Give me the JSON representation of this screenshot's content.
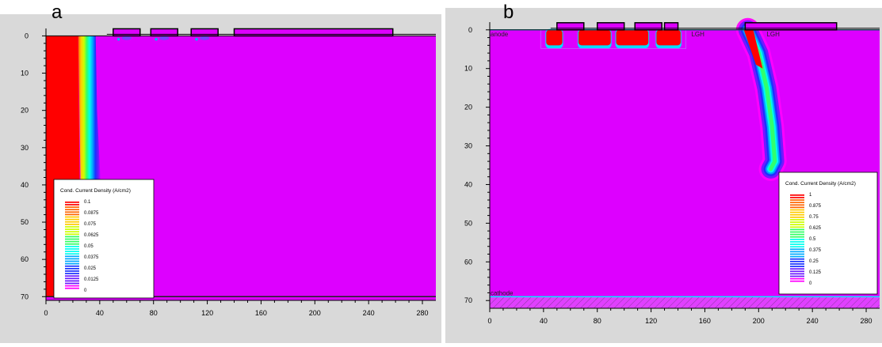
{
  "chart_data": [
    {
      "type": "heatmap",
      "panel_label": "a",
      "x_ticks": [
        0,
        40,
        80,
        120,
        160,
        200,
        240,
        280
      ],
      "y_ticks": [
        0,
        10,
        20,
        30,
        40,
        50,
        60,
        70
      ],
      "xlim": [
        0,
        290
      ],
      "ylim": [
        -2,
        71
      ],
      "y_axis_inverted": true,
      "legend": {
        "title": "Cond. Current Density (A/cm2)",
        "placement": "bottom-left",
        "labels": [
          "0.1",
          "0.0875",
          "0.075",
          "0.0625",
          "0.05",
          "0.0375",
          "0.025",
          "0.0125",
          "0"
        ]
      },
      "colormap": [
        "#ff0000",
        "#ff6600",
        "#ffcc00",
        "#ccff00",
        "#33ff66",
        "#00ffee",
        "#00aaff",
        "#1a33ff",
        "#6a1aff",
        "#ff00ff"
      ],
      "background_color": "#dd00ff",
      "features": {
        "high_density_band": {
          "x_left": 0,
          "x_right_top": 24,
          "x_right_bottom": 26,
          "y_top": 0,
          "y_bottom": 70
        },
        "gradient_edge": {
          "x_at_top": 37,
          "x_at_bottom": 41,
          "y_end": 42
        },
        "trench_gates_x": [
          [
            50,
            70
          ],
          [
            78,
            98
          ],
          [
            108,
            128
          ]
        ],
        "top_electrode_x": [
          140,
          258
        ],
        "bottom_layer_y": 70
      }
    },
    {
      "type": "heatmap",
      "panel_label": "b",
      "x_ticks": [
        0,
        40,
        80,
        120,
        160,
        200,
        240,
        280
      ],
      "y_ticks": [
        0,
        10,
        20,
        30,
        40,
        50,
        60,
        70
      ],
      "xlim": [
        0,
        290
      ],
      "ylim": [
        -2,
        72
      ],
      "y_axis_inverted": true,
      "annotations": [
        "anode",
        "cathode",
        "LGH",
        "LGH"
      ],
      "legend": {
        "title": "Cond. Current Density (A/cm2)",
        "placement": "bottom-right",
        "labels": [
          "1",
          "0.875",
          "0.75",
          "0.625",
          "0.5",
          "0.375",
          "0.25",
          "0.125",
          "0"
        ]
      },
      "colormap": [
        "#ff0000",
        "#ff6600",
        "#ffcc00",
        "#ccff00",
        "#33ff66",
        "#00ffee",
        "#00aaff",
        "#1a33ff",
        "#6a1aff",
        "#ff00ff"
      ],
      "background_color": "#dd00ff",
      "features": {
        "trench_gates_x": [
          [
            50,
            70
          ],
          [
            80,
            100
          ],
          [
            108,
            128
          ],
          [
            130,
            140
          ]
        ],
        "top_electrode_x": [
          190,
          258
        ],
        "hotspot_gates_x": [
          [
            42,
            54
          ],
          [
            66,
            90
          ],
          [
            94,
            118
          ],
          [
            124,
            142
          ]
        ],
        "hotspot_y_bottom": 4,
        "filament_path": [
          [
            192,
            0
          ],
          [
            200,
            6
          ],
          [
            206,
            15
          ],
          [
            210,
            25
          ],
          [
            212,
            34
          ],
          [
            209,
            36
          ]
        ],
        "cathode_layer_y": [
          69,
          72
        ]
      }
    }
  ]
}
